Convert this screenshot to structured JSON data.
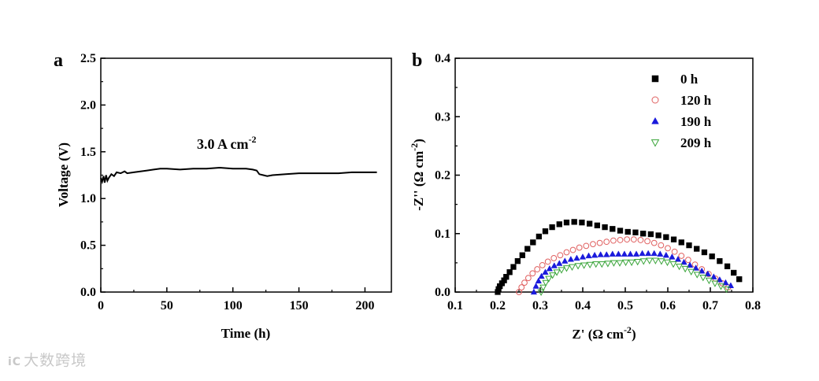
{
  "watermark": {
    "logo": "iC",
    "text": "大数跨境"
  },
  "chart_data": [
    {
      "panel_label": "a",
      "type": "line",
      "title": "",
      "xlabel": "Time (h)",
      "ylabel": "Voltage (V)",
      "xlim": [
        0,
        220
      ],
      "ylim": [
        0.0,
        2.5
      ],
      "xticks": [
        0,
        50,
        100,
        150,
        200
      ],
      "yticks": [
        0.0,
        0.5,
        1.0,
        1.5,
        2.0,
        2.5
      ],
      "annotation": {
        "base": "3.0 A cm",
        "sup": "-2"
      },
      "series": [
        {
          "name": "voltage",
          "x": [
            0,
            1,
            2,
            3,
            4,
            5,
            6,
            8,
            10,
            12,
            15,
            18,
            20,
            25,
            30,
            35,
            40,
            45,
            50,
            60,
            70,
            80,
            90,
            100,
            110,
            115,
            118,
            120,
            123,
            126,
            130,
            140,
            150,
            160,
            170,
            180,
            190,
            200,
            209
          ],
          "y": [
            1.22,
            1.18,
            1.24,
            1.17,
            1.25,
            1.19,
            1.22,
            1.26,
            1.24,
            1.28,
            1.27,
            1.29,
            1.27,
            1.28,
            1.29,
            1.3,
            1.31,
            1.32,
            1.32,
            1.31,
            1.32,
            1.32,
            1.33,
            1.32,
            1.32,
            1.31,
            1.3,
            1.26,
            1.25,
            1.24,
            1.25,
            1.26,
            1.27,
            1.27,
            1.27,
            1.27,
            1.28,
            1.28,
            1.28
          ]
        }
      ]
    },
    {
      "panel_label": "b",
      "type": "scatter",
      "title": "",
      "xlabel": {
        "base": "Z' (Ω cm",
        "sup": "-2",
        "tail": ")"
      },
      "ylabel": {
        "base": "-Z'' (Ω cm",
        "sup": "-2",
        "tail": ")"
      },
      "xlim": [
        0.1,
        0.8
      ],
      "ylim": [
        0.0,
        0.4
      ],
      "xticks": [
        "0.1",
        "0.2",
        "0.3",
        "0.4",
        "0.5",
        "0.6",
        "0.7",
        "0.8"
      ],
      "yticks": [
        "0.0",
        "0.1",
        "0.2",
        "0.3",
        "0.4"
      ],
      "legend_position": "top-right",
      "series": [
        {
          "name": "0 h",
          "marker": "square",
          "color": "#000000",
          "x": [
            0.2,
            0.202,
            0.205,
            0.21,
            0.215,
            0.22,
            0.228,
            0.237,
            0.247,
            0.258,
            0.27,
            0.283,
            0.297,
            0.312,
            0.328,
            0.345,
            0.362,
            0.38,
            0.398,
            0.416,
            0.434,
            0.452,
            0.47,
            0.488,
            0.506,
            0.524,
            0.542,
            0.56,
            0.578,
            0.596,
            0.614,
            0.632,
            0.65,
            0.668,
            0.686,
            0.704,
            0.722,
            0.74,
            0.755,
            0.768
          ],
          "y": [
            0.0,
            0.005,
            0.01,
            0.015,
            0.02,
            0.026,
            0.034,
            0.043,
            0.053,
            0.063,
            0.074,
            0.085,
            0.095,
            0.104,
            0.111,
            0.116,
            0.119,
            0.12,
            0.119,
            0.117,
            0.114,
            0.111,
            0.108,
            0.105,
            0.103,
            0.102,
            0.1,
            0.099,
            0.097,
            0.094,
            0.09,
            0.085,
            0.08,
            0.074,
            0.068,
            0.061,
            0.053,
            0.044,
            0.033,
            0.022
          ]
        },
        {
          "name": "120 h",
          "marker": "circle-open",
          "color": "#e06060",
          "x": [
            0.25,
            0.256,
            0.263,
            0.272,
            0.282,
            0.293,
            0.305,
            0.318,
            0.332,
            0.347,
            0.362,
            0.377,
            0.392,
            0.408,
            0.424,
            0.44,
            0.456,
            0.472,
            0.488,
            0.504,
            0.52,
            0.536,
            0.552,
            0.568,
            0.584,
            0.6,
            0.616,
            0.632,
            0.648,
            0.664,
            0.68,
            0.696,
            0.712,
            0.728,
            0.742
          ],
          "y": [
            0.0,
            0.008,
            0.016,
            0.024,
            0.032,
            0.039,
            0.046,
            0.052,
            0.058,
            0.063,
            0.068,
            0.072,
            0.076,
            0.079,
            0.082,
            0.084,
            0.086,
            0.088,
            0.089,
            0.09,
            0.09,
            0.089,
            0.087,
            0.084,
            0.08,
            0.075,
            0.069,
            0.062,
            0.055,
            0.047,
            0.039,
            0.031,
            0.023,
            0.015,
            0.008
          ]
        },
        {
          "name": "190 h",
          "marker": "triangle-up",
          "color": "#1a1adc",
          "x": [
            0.285,
            0.29,
            0.296,
            0.303,
            0.312,
            0.322,
            0.333,
            0.345,
            0.358,
            0.372,
            0.386,
            0.4,
            0.414,
            0.428,
            0.442,
            0.456,
            0.47,
            0.484,
            0.498,
            0.512,
            0.526,
            0.54,
            0.554,
            0.568,
            0.582,
            0.596,
            0.61,
            0.624,
            0.638,
            0.652,
            0.666,
            0.68,
            0.694,
            0.708,
            0.722,
            0.736,
            0.748
          ],
          "y": [
            0.0,
            0.01,
            0.019,
            0.027,
            0.034,
            0.04,
            0.045,
            0.049,
            0.053,
            0.056,
            0.058,
            0.06,
            0.062,
            0.063,
            0.064,
            0.064,
            0.065,
            0.065,
            0.065,
            0.065,
            0.065,
            0.066,
            0.066,
            0.066,
            0.065,
            0.063,
            0.06,
            0.056,
            0.051,
            0.046,
            0.041,
            0.036,
            0.031,
            0.026,
            0.021,
            0.016,
            0.011
          ]
        },
        {
          "name": "209 h",
          "marker": "triangle-down-open",
          "color": "#3aa53a",
          "x": [
            0.302,
            0.307,
            0.313,
            0.32,
            0.329,
            0.339,
            0.35,
            0.362,
            0.375,
            0.389,
            0.403,
            0.417,
            0.431,
            0.445,
            0.459,
            0.473,
            0.487,
            0.501,
            0.515,
            0.529,
            0.543,
            0.557,
            0.571,
            0.585,
            0.599,
            0.613,
            0.627,
            0.641,
            0.655,
            0.669,
            0.683,
            0.697,
            0.711,
            0.725,
            0.738
          ],
          "y": [
            0.0,
            0.008,
            0.016,
            0.023,
            0.029,
            0.034,
            0.038,
            0.041,
            0.043,
            0.045,
            0.046,
            0.047,
            0.048,
            0.048,
            0.049,
            0.05,
            0.05,
            0.051,
            0.051,
            0.052,
            0.053,
            0.054,
            0.054,
            0.053,
            0.051,
            0.048,
            0.044,
            0.04,
            0.035,
            0.03,
            0.025,
            0.02,
            0.015,
            0.01,
            0.005
          ]
        }
      ]
    }
  ]
}
